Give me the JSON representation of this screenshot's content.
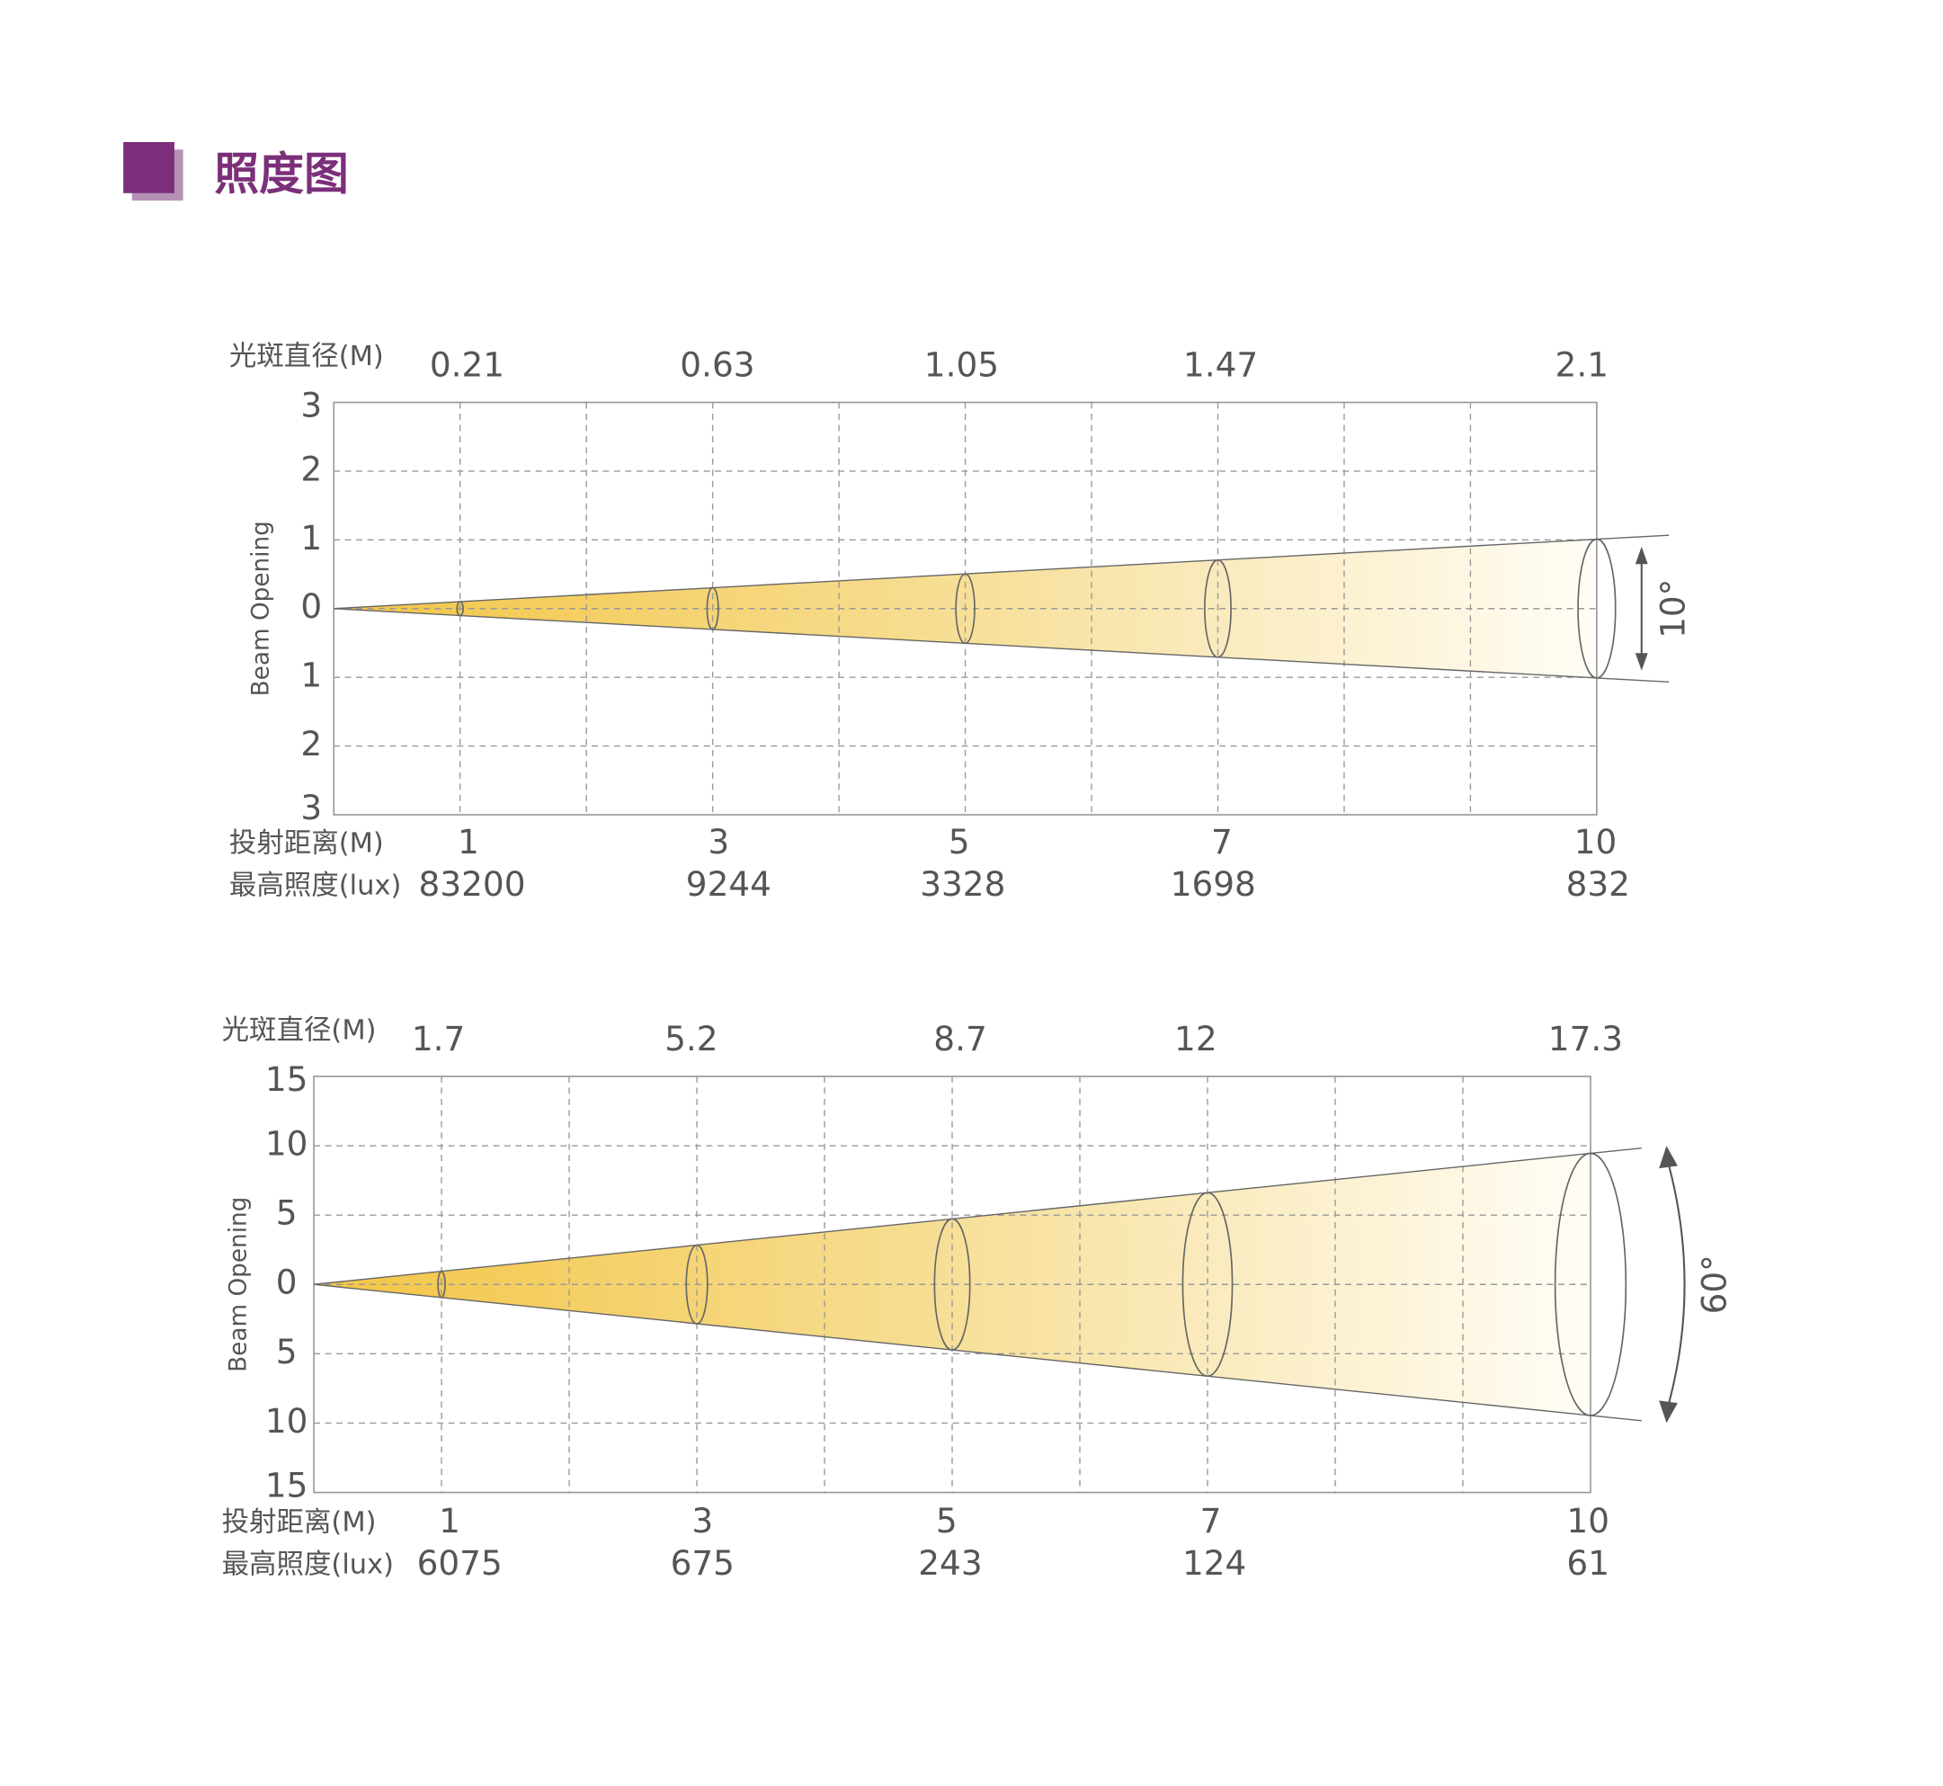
{
  "header": {
    "title": "照度图"
  },
  "diagrams": [
    {
      "diameter_label": "光斑直径(M)",
      "diameters": [
        "0.21",
        "0.63",
        "1.05",
        "1.47",
        "2.1"
      ],
      "y_axis_label": "Beam Opening",
      "y_ticks": [
        "3",
        "2",
        "1",
        "0",
        "1",
        "2",
        "3"
      ],
      "distance_label": "投射距离(M)",
      "distances": [
        "1",
        "3",
        "5",
        "7",
        "10"
      ],
      "lux_label": "最高照度(lux)",
      "lux": [
        "83200",
        "9244",
        "3328",
        "1698",
        "832"
      ],
      "angle": "10°"
    },
    {
      "diameter_label": "光斑直径(M)",
      "diameters": [
        "1.7",
        "5.2",
        "8.7",
        "12",
        "17.3"
      ],
      "y_axis_label": "Beam Opening",
      "y_ticks": [
        "15",
        "10",
        "5",
        "0",
        "5",
        "10",
        "15"
      ],
      "distance_label": "投射距离(M)",
      "distances": [
        "1",
        "3",
        "5",
        "7",
        "10"
      ],
      "lux_label": "最高照度(lux)",
      "lux": [
        "6075",
        "675",
        "243",
        "124",
        "61"
      ],
      "angle": "60°"
    }
  ]
}
